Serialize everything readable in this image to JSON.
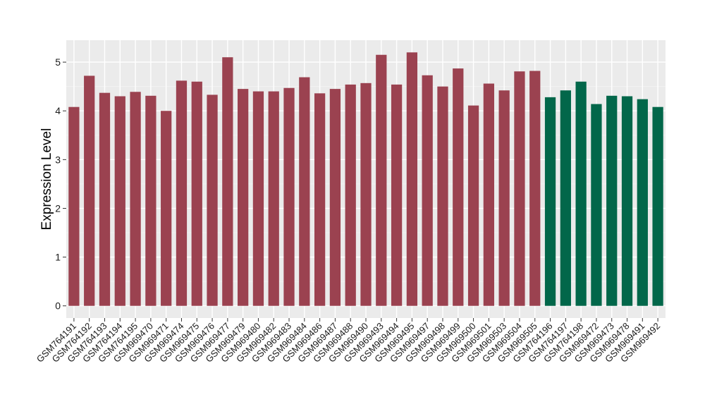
{
  "chart_data": {
    "type": "bar",
    "title": "",
    "xlabel": "",
    "ylabel": "Expression Level",
    "ylim": [
      -0.25,
      5.45
    ],
    "yticks": [
      0,
      1,
      2,
      3,
      4,
      5
    ],
    "grid": true,
    "legend": "none",
    "categories": [
      "GSM764191",
      "GSM764192",
      "GSM764193",
      "GSM764194",
      "GSM764195",
      "GSM969470",
      "GSM969471",
      "GSM969474",
      "GSM969475",
      "GSM969476",
      "GSM969477",
      "GSM969479",
      "GSM969480",
      "GSM969482",
      "GSM969483",
      "GSM969484",
      "GSM969486",
      "GSM969487",
      "GSM969488",
      "GSM969490",
      "GSM969493",
      "GSM969494",
      "GSM969495",
      "GSM969497",
      "GSM969498",
      "GSM969499",
      "GSM969500",
      "GSM969501",
      "GSM969503",
      "GSM969504",
      "GSM969505",
      "GSM764196",
      "GSM764197",
      "GSM764198",
      "GSM969472",
      "GSM969473",
      "GSM969478",
      "GSM969491",
      "GSM969492"
    ],
    "values": [
      4.08,
      4.72,
      4.37,
      4.3,
      4.39,
      4.31,
      4.0,
      4.62,
      4.6,
      4.33,
      5.1,
      4.45,
      4.4,
      4.4,
      4.47,
      4.69,
      4.36,
      4.45,
      4.54,
      4.57,
      5.15,
      4.54,
      5.2,
      4.73,
      4.5,
      4.87,
      4.11,
      4.56,
      4.42,
      4.81,
      4.82,
      4.28,
      4.42,
      4.6,
      4.14,
      4.31,
      4.3,
      4.24,
      4.08
    ],
    "groups": [
      0,
      0,
      0,
      0,
      0,
      0,
      0,
      0,
      0,
      0,
      0,
      0,
      0,
      0,
      0,
      0,
      0,
      0,
      0,
      0,
      0,
      0,
      0,
      0,
      0,
      0,
      0,
      0,
      0,
      0,
      0,
      1,
      1,
      1,
      1,
      1,
      1,
      1,
      1
    ],
    "group_colors": [
      "#9b4250",
      "#02674a"
    ]
  },
  "colors": {
    "panel_background": "#ebebeb",
    "grid_major": "#ffffff",
    "grid_minor": "#f4f4f4",
    "tick_mark": "#333333"
  }
}
